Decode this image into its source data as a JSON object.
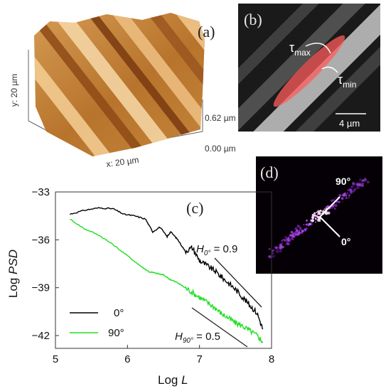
{
  "panel_a": {
    "label": "(a)",
    "x_label": "x: 20 µm",
    "y_label": "y: 20 µm",
    "z_max": "0.62 µm",
    "z_min": "0.00 µm"
  },
  "panel_b": {
    "label": "(b)",
    "tau_max": "τ",
    "tau_max_sub": "max",
    "tau_min": "τ",
    "tau_min_sub": "min",
    "scale": "4 µm"
  },
  "panel_c": {
    "label": "(c)"
  },
  "panel_d": {
    "label": "(d)",
    "angle_90": "90°",
    "angle_0": "0°"
  },
  "chart_data": {
    "type": "line",
    "xlabel_prefix": "Log",
    "xlabel_var": "L",
    "ylabel_prefix": "Log",
    "ylabel_var": "PSD",
    "xlim": [
      5,
      8
    ],
    "ylim": [
      -42.8,
      -33
    ],
    "xticks": [
      "5",
      "6",
      "7",
      "8"
    ],
    "yticks": [
      "−33",
      "−36",
      "−39",
      "−42"
    ],
    "series": [
      {
        "name": "0°",
        "color": "#000000",
        "x": [
          5.2,
          5.4,
          5.6,
          5.8,
          5.95,
          6.1,
          6.25,
          6.35,
          6.45,
          6.55,
          6.6,
          6.7,
          6.8,
          6.9,
          7.0,
          7.1,
          7.2,
          7.3,
          7.4,
          7.5,
          7.6,
          7.7,
          7.8,
          7.88
        ],
        "y": [
          -34.4,
          -34.15,
          -34.0,
          -34.05,
          -34.4,
          -34.5,
          -34.7,
          -35.5,
          -35.2,
          -35.8,
          -35.5,
          -36.0,
          -36.7,
          -36.5,
          -37.3,
          -37.6,
          -37.9,
          -38.3,
          -38.7,
          -39.1,
          -39.6,
          -40.1,
          -40.6,
          -41.6
        ]
      },
      {
        "name": "90°",
        "color": "#22dd22",
        "x": [
          5.2,
          5.4,
          5.6,
          5.8,
          6.0,
          6.2,
          6.3,
          6.4,
          6.5,
          6.6,
          6.7,
          6.8,
          6.9,
          7.0,
          7.1,
          7.2,
          7.3,
          7.4,
          7.5,
          7.6,
          7.7,
          7.8,
          7.88
        ],
        "y": [
          -34.7,
          -35.3,
          -35.7,
          -36.3,
          -37.0,
          -37.7,
          -38.0,
          -38.1,
          -38.2,
          -38.5,
          -38.7,
          -39.0,
          -39.3,
          -39.6,
          -39.9,
          -40.2,
          -40.6,
          -40.9,
          -41.2,
          -41.4,
          -41.7,
          -42.0,
          -42.4
        ]
      }
    ],
    "annotations": [
      {
        "var": "H",
        "sub": "0°",
        "text": " = 0.9"
      },
      {
        "var": "H",
        "sub": "90°",
        "text": " = 0.5"
      }
    ]
  }
}
